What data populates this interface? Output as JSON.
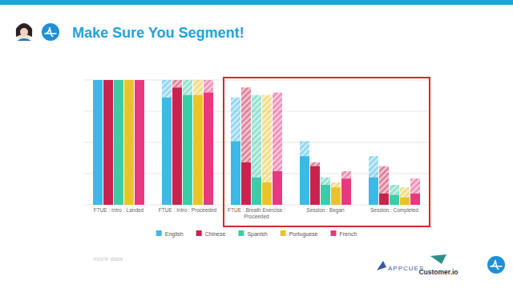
{
  "chart_data": {
    "type": "bar",
    "title": "Make Sure You Segment!",
    "categories": [
      "FTUE : Intro : Landed",
      "FTUE : Intro : Proceeded",
      "FTUE : Breath Exercise : Proceeded",
      "Session : Began",
      "Session : Completed"
    ],
    "series": [
      {
        "name": "English",
        "color": "#3db8e8",
        "values": [
          100,
          86,
          51,
          39,
          22
        ]
      },
      {
        "name": "Chinese",
        "color": "#c8234e",
        "values": [
          100,
          94,
          34,
          31,
          9
        ]
      },
      {
        "name": "Spanish",
        "color": "#3dcca8",
        "values": [
          100,
          88,
          22,
          16,
          8
        ]
      },
      {
        "name": "Portuguese",
        "color": "#e8c42a",
        "values": [
          100,
          88,
          18,
          14,
          6
        ]
      },
      {
        "name": "French",
        "color": "#e8397f",
        "values": [
          100,
          90,
          27,
          21,
          9
        ]
      }
    ],
    "ylim": [
      0,
      100
    ],
    "yticks": [
      0,
      25,
      50,
      75,
      100
    ],
    "grid": true,
    "tick_labels": false,
    "legend": "bottom",
    "annotations": [
      "mock data"
    ]
  },
  "footer": {
    "logos": [
      "APPCUES",
      "Customer.io"
    ]
  }
}
